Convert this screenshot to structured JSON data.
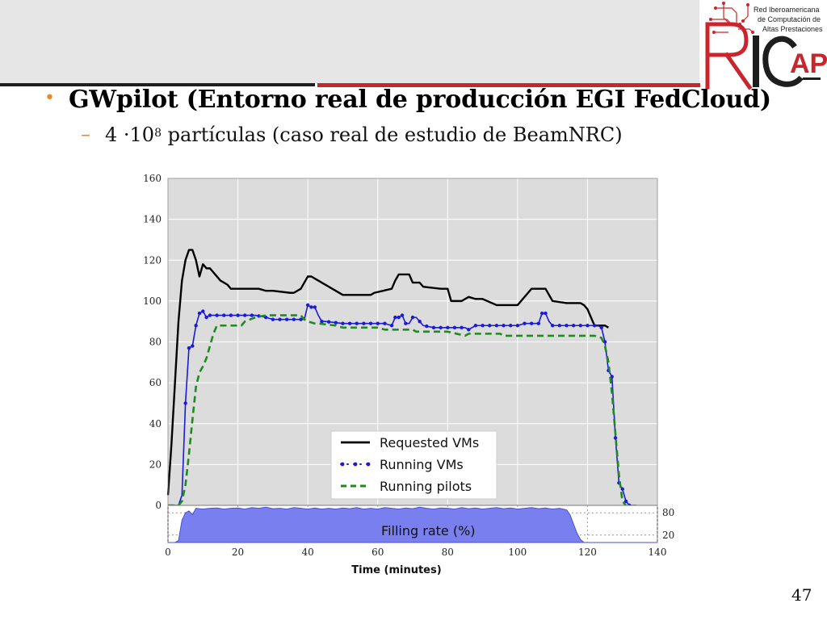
{
  "slide": {
    "bullet": "•",
    "heading": "GWpilot (Entorno real de producción EGI FedCloud)",
    "sub_dash": "–",
    "sub_prefix": "4 ·10",
    "sub_exp": "8",
    "sub_suffix": " partículas (caso real de estudio de BeamNRC)",
    "page_number": "47"
  },
  "logo": {
    "line1": "Red Iberoamericana",
    "line2": "de Computación de",
    "line3": "Altas Prestaciones",
    "letters": "RICAP"
  },
  "colors": {
    "requested": "#000000",
    "running_vms": "#1a1adc",
    "running_pilots": "#1f8a1f",
    "filling_fill": "#7a7ff0",
    "plot_bg": "#dcdcdc",
    "accent_red": "#c8262c",
    "bullet": "#e88a1f"
  },
  "chart_data": [
    {
      "type": "line",
      "xlabel": "Time (minutes)",
      "ylabel": "",
      "xlim": [
        0,
        140
      ],
      "ylim": [
        0,
        160
      ],
      "yticks": [
        0,
        20,
        40,
        60,
        80,
        100,
        120,
        140,
        160
      ],
      "xticks": [
        0,
        20,
        40,
        60,
        80,
        100,
        120,
        140
      ],
      "grid": true,
      "legend": "lower center",
      "series": [
        {
          "name": "Requested VMs",
          "style": "solid",
          "x": [
            0,
            1,
            2,
            3,
            4,
            5,
            6,
            7,
            8,
            9,
            10,
            11,
            12,
            15,
            17,
            18,
            26,
            28,
            30,
            35,
            36,
            38,
            40,
            41,
            42,
            43,
            50,
            55,
            58,
            59,
            64,
            65,
            66,
            69,
            70,
            72,
            73,
            78,
            80,
            81,
            82,
            84,
            86,
            88,
            90,
            94,
            96,
            98,
            100,
            104,
            106,
            108,
            110,
            114,
            116,
            118,
            119,
            120,
            122,
            125,
            126
          ],
          "y": [
            5,
            30,
            60,
            90,
            110,
            120,
            125,
            125,
            120,
            112,
            118,
            116,
            116,
            110,
            108,
            106,
            106,
            105,
            105,
            104,
            104,
            106,
            112,
            112,
            111,
            110,
            103,
            103,
            103,
            104,
            106,
            110,
            113,
            113,
            109,
            109,
            107,
            106,
            106,
            100,
            100,
            100,
            102,
            101,
            101,
            98,
            98,
            98,
            98,
            106,
            106,
            106,
            100,
            99,
            99,
            99,
            98,
            96,
            88,
            88,
            87
          ]
        },
        {
          "name": "Running VMs",
          "style": "dotted",
          "x": [
            0,
            3,
            4,
            5,
            6,
            7,
            8,
            9,
            10,
            11,
            12,
            14,
            16,
            20,
            25,
            28,
            30,
            35,
            37,
            38,
            39,
            40,
            41,
            42,
            43,
            44,
            45,
            50,
            55,
            60,
            62,
            64,
            65,
            66,
            67,
            68,
            69,
            70,
            71,
            72,
            73,
            76,
            80,
            85,
            86,
            88,
            90,
            95,
            100,
            102,
            104,
            106,
            107,
            108,
            109,
            110,
            115,
            120,
            123,
            124,
            125,
            126,
            127,
            128,
            129,
            130,
            131,
            132,
            133,
            134
          ],
          "y": [
            0,
            0,
            5,
            50,
            77,
            78,
            88,
            94,
            95,
            92,
            93,
            93,
            93,
            93,
            93,
            92,
            91,
            91,
            91,
            91,
            91,
            98,
            97,
            97,
            93,
            90,
            90,
            89,
            89,
            89,
            89,
            88,
            92,
            92,
            93,
            89,
            89,
            92,
            92,
            90,
            88,
            87,
            87,
            87,
            86,
            88,
            88,
            88,
            88,
            89,
            89,
            89,
            94,
            94,
            90,
            88,
            88,
            88,
            88,
            87,
            80,
            66,
            63,
            33,
            11,
            8,
            2,
            0,
            0,
            0
          ],
          "markers_x": [
            5,
            6,
            7,
            8,
            9,
            10,
            11,
            12,
            14,
            16,
            18,
            20,
            22,
            24,
            26,
            28,
            30,
            32,
            34,
            36,
            38,
            40,
            41,
            42,
            44,
            46,
            48,
            50,
            52,
            54,
            56,
            58,
            60,
            62,
            64,
            65,
            66,
            67,
            68,
            70,
            72,
            74,
            76,
            78,
            80,
            82,
            84,
            86,
            88,
            90,
            92,
            94,
            96,
            98,
            100,
            102,
            104,
            106,
            107,
            108,
            110,
            112,
            114,
            116,
            118,
            120,
            122,
            124,
            125,
            126,
            127,
            128,
            129,
            130,
            131,
            132
          ]
        },
        {
          "name": "Running pilots",
          "style": "dashed",
          "x": [
            0,
            3,
            4,
            5,
            6,
            7,
            8,
            9,
            10,
            11,
            12,
            13,
            14,
            20,
            21,
            22,
            25,
            28,
            30,
            35,
            37,
            38,
            39,
            40,
            42,
            43,
            48,
            50,
            60,
            62,
            70,
            71,
            72,
            80,
            85,
            86,
            95,
            96,
            100,
            110,
            120,
            122,
            124,
            125,
            126,
            127,
            128,
            129,
            130,
            131
          ],
          "y": [
            0,
            0,
            2,
            10,
            25,
            42,
            58,
            65,
            68,
            72,
            78,
            84,
            88,
            88,
            88,
            90,
            92,
            93,
            93,
            93,
            93,
            93,
            91,
            90,
            89,
            89,
            88,
            87,
            87,
            86,
            86,
            85,
            85,
            85,
            83,
            84,
            84,
            83,
            83,
            83,
            83,
            83,
            82,
            78,
            70,
            55,
            35,
            15,
            2,
            0
          ]
        }
      ]
    },
    {
      "type": "area",
      "title": "Filling rate (%)",
      "xlim": [
        0,
        140
      ],
      "ylim": [
        0,
        100
      ],
      "yticks": [
        20,
        80
      ],
      "series": [
        {
          "name": "Filling rate (%)",
          "x": [
            0,
            2,
            3,
            4,
            5,
            6,
            7,
            8,
            10,
            12,
            14,
            16,
            18,
            20,
            22,
            24,
            26,
            28,
            30,
            32,
            34,
            36,
            38,
            40,
            42,
            44,
            46,
            48,
            50,
            52,
            54,
            56,
            58,
            60,
            62,
            64,
            66,
            68,
            70,
            72,
            74,
            76,
            78,
            80,
            82,
            84,
            86,
            88,
            90,
            92,
            94,
            96,
            98,
            100,
            102,
            104,
            106,
            108,
            110,
            112,
            114,
            115,
            116,
            117,
            118,
            119,
            140
          ],
          "y": [
            0,
            0,
            5,
            60,
            80,
            85,
            75,
            92,
            90,
            92,
            93,
            90,
            92,
            93,
            90,
            94,
            92,
            95,
            91,
            92,
            90,
            94,
            92,
            90,
            93,
            90,
            92,
            90,
            93,
            91,
            94,
            90,
            92,
            90,
            94,
            92,
            90,
            93,
            91,
            95,
            92,
            90,
            93,
            92,
            90,
            94,
            91,
            93,
            90,
            92,
            94,
            91,
            93,
            90,
            92,
            94,
            91,
            93,
            90,
            92,
            88,
            75,
            50,
            25,
            8,
            0,
            0
          ]
        }
      ]
    }
  ]
}
